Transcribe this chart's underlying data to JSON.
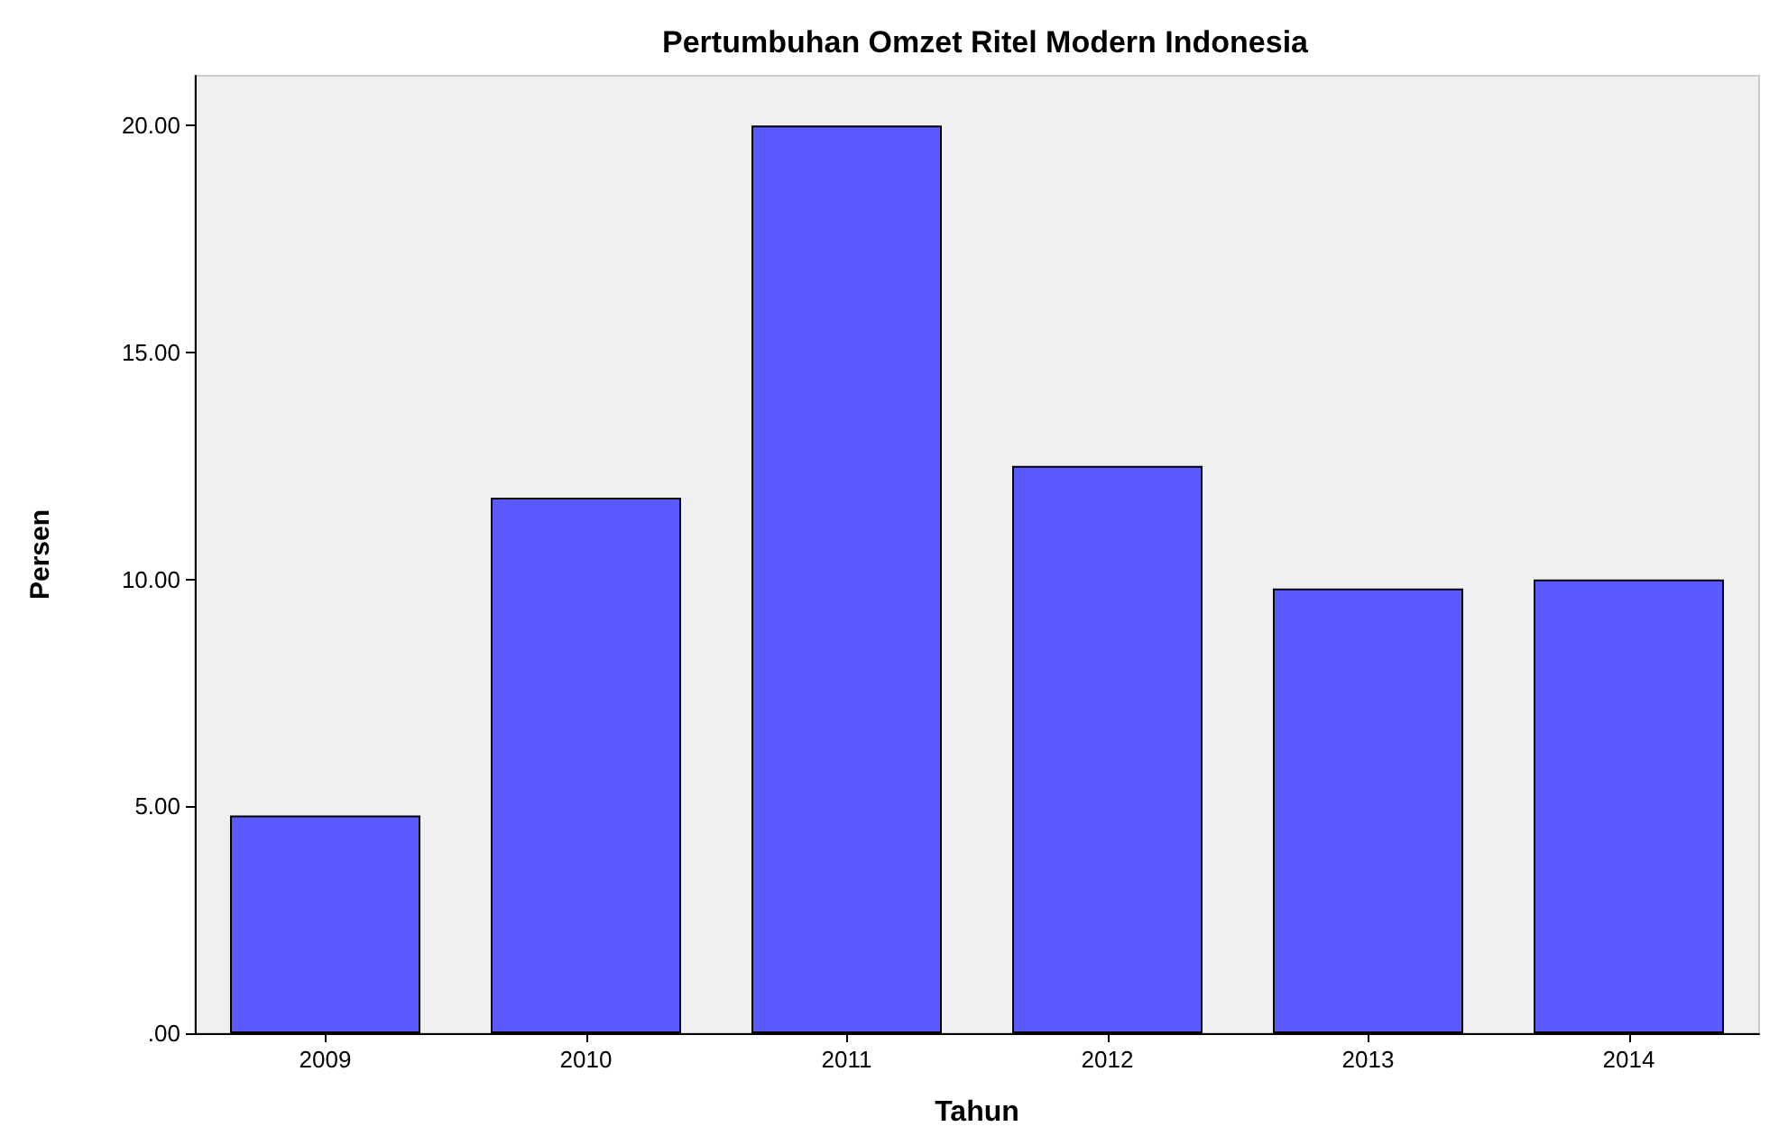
{
  "chart_data": {
    "type": "bar",
    "title": "Pertumbuhan Omzet Ritel Modern Indonesia",
    "xlabel": "Tahun",
    "ylabel": "Persen",
    "categories": [
      "2009",
      "2010",
      "2011",
      "2012",
      "2013",
      "2014"
    ],
    "values": [
      4.8,
      11.8,
      20.0,
      12.5,
      9.8,
      10.0
    ],
    "color": "#5a5aff",
    "ylim": [
      0,
      21.1
    ],
    "yticks": [
      {
        "value": 0,
        "label": ".00"
      },
      {
        "value": 5,
        "label": "5.00"
      },
      {
        "value": 10,
        "label": "10.00"
      },
      {
        "value": 15,
        "label": "15.00"
      },
      {
        "value": 20,
        "label": "20.00"
      }
    ],
    "grid": false
  }
}
